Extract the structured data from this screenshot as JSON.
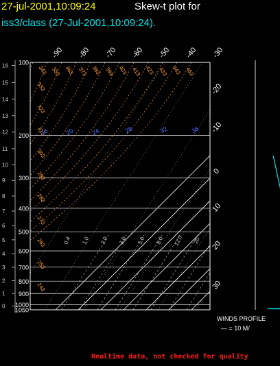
{
  "header": {
    "timestamp": "27-jul-2001,10:09:24",
    "title": "Skew-t plot for",
    "subtitle": "iss3/class (27-Jul-2001,10:09:24)."
  },
  "footer": {
    "note": "Realtime data, not checked for quality"
  },
  "winds": {
    "title": "WINDS PROFILE",
    "scale": "— = 10 M/"
  },
  "colors": {
    "isobar": "#cccccc",
    "isotherm": "#ffffff",
    "dry_adiabat": "#ffa040",
    "mixing_ratio": "#cccccc",
    "wet_adiabat_label": "#4f6fff",
    "temperature_trace": "#00e5ee",
    "footer": "#ff1a1a"
  },
  "chart_data": {
    "type": "skew-t",
    "y_scale": "log-pressure",
    "pressure_range_mb": [
      1050,
      100
    ],
    "pressure_levels_mb": [
      100,
      200,
      300,
      400,
      500,
      600,
      700,
      800,
      900,
      1000,
      1050
    ],
    "pressure_labels": [
      "100",
      "200",
      "300",
      "400",
      "500",
      "600",
      "700",
      "800",
      "900",
      "1000",
      "1050"
    ],
    "height_km_ticks": [
      0,
      1,
      2,
      3,
      4,
      5,
      6,
      7,
      8,
      9,
      10,
      11,
      12,
      13,
      14,
      15,
      16
    ],
    "height_km_pressure_mb": [
      1013,
      899,
      795,
      701,
      616,
      540,
      472,
      411,
      356,
      307,
      265,
      227,
      194,
      166,
      142,
      121,
      103
    ],
    "isotherms_c": [
      -90,
      -80,
      -70,
      -60,
      -50,
      -40,
      -30,
      -20,
      -10,
      0,
      10,
      20,
      30
    ],
    "isotherm_labels_top": [
      "-90",
      "-80",
      "-70",
      "-60",
      "-50",
      "-40",
      "-30"
    ],
    "isotherm_labels_right": [
      "-20",
      "-10",
      "0",
      "10",
      "20",
      "30"
    ],
    "dry_adiabat_labels_top": [
      "343",
      "353",
      "363",
      "373",
      "383",
      "393",
      "403",
      "413",
      "423",
      "433",
      "443",
      "453"
    ],
    "dry_adiabat_labels_left": [
      "333",
      "323",
      "313",
      "303",
      "293",
      "283",
      "273",
      "263",
      "253",
      "243"
    ],
    "wet_adiabat_labels": [
      "16",
      "20",
      "24",
      "28",
      "32",
      "36"
    ],
    "mixing_ratio_labels": [
      "0.4",
      "1.0",
      "2.0",
      "3.0",
      "5.0",
      "8.0",
      "12.0",
      "20"
    ],
    "trace_upper": [
      {
        "p": 243,
        "t": -62
      },
      {
        "p": 398,
        "t": -34
      }
    ],
    "trace_lower_dew": [
      {
        "p": 1040,
        "t": 5
      },
      {
        "p": 1040,
        "t": 27
      },
      {
        "p": 1030,
        "t": 37
      },
      {
        "p": 740,
        "t": 28
      }
    ],
    "trace_lower_temp": [
      {
        "p": 1040,
        "t": 3
      },
      {
        "p": 1040,
        "t": 20
      },
      {
        "p": 1025,
        "t": 30
      },
      {
        "p": 740,
        "t": 28
      }
    ],
    "arrows": [
      {
        "p": 1035,
        "t": 10
      },
      {
        "p": 1035,
        "t": 25
      }
    ]
  }
}
